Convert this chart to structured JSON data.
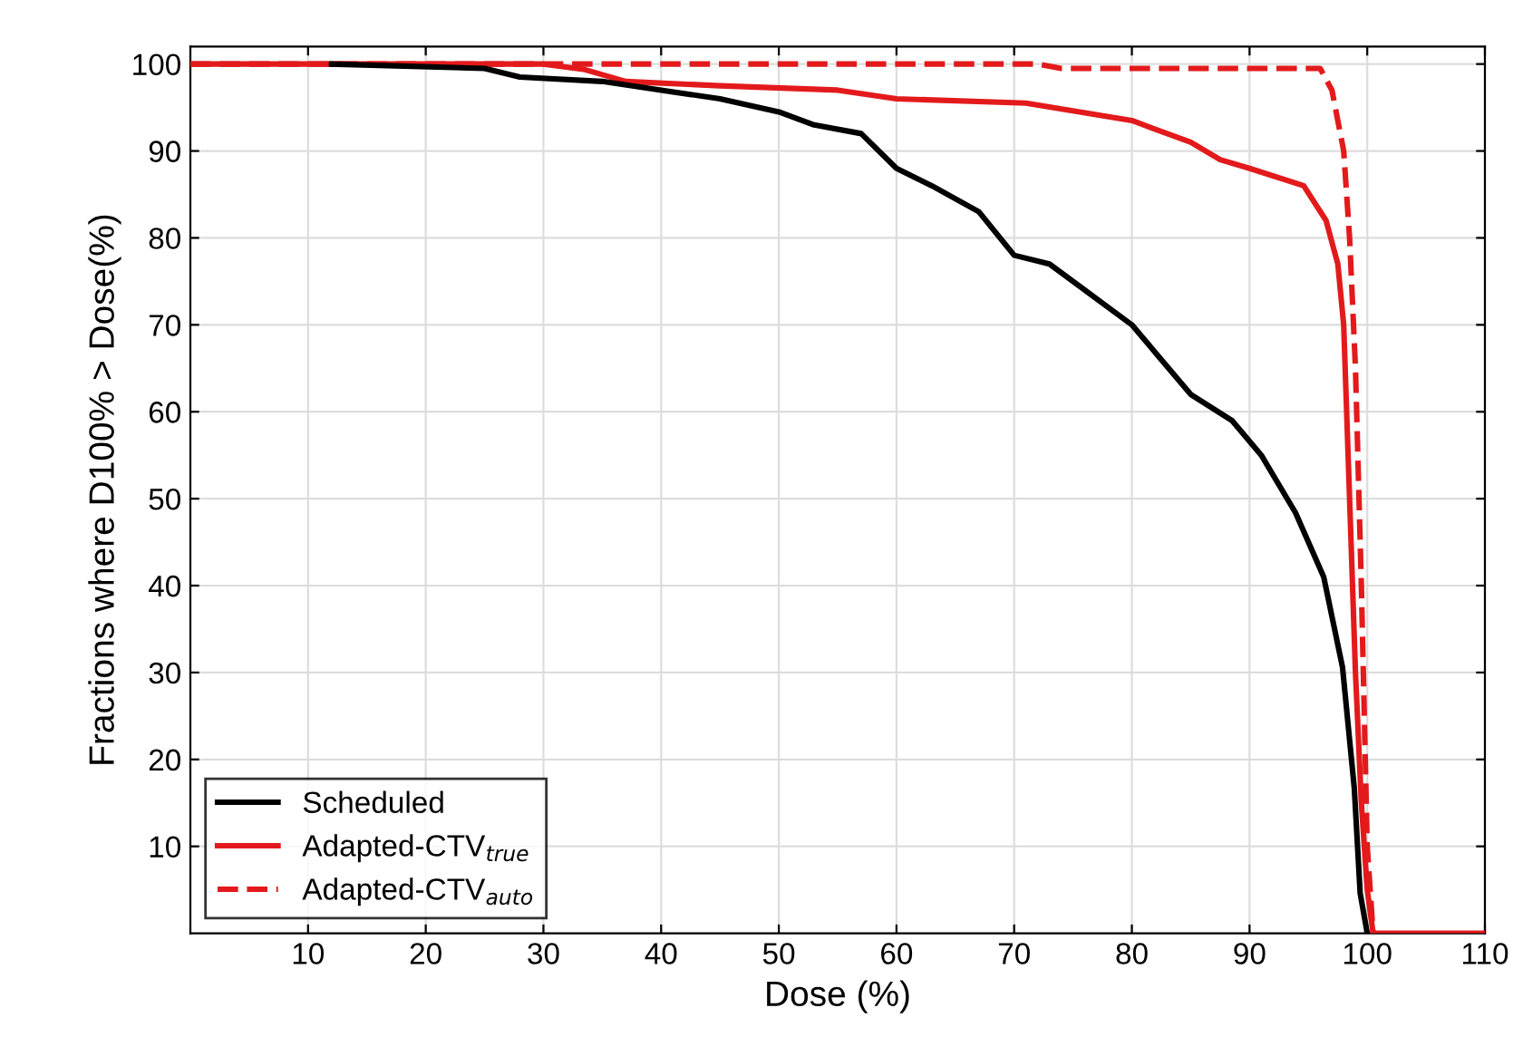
{
  "chart_data": {
    "type": "line",
    "xlabel": "Dose (%)",
    "ylabel": "Fractions where D100% > Dose(%)",
    "xlim": [
      0,
      110
    ],
    "ylim": [
      0,
      102
    ],
    "xticks": [
      10,
      20,
      30,
      40,
      50,
      60,
      70,
      80,
      90,
      100,
      110
    ],
    "yticks": [
      10,
      20,
      30,
      40,
      50,
      60,
      70,
      80,
      90,
      100
    ],
    "grid": true,
    "legend": "bottom left",
    "series": [
      {
        "name": "Scheduled",
        "color": "#000000",
        "line_style": "solid",
        "x": [
          12,
          25,
          28,
          35,
          40,
          45,
          50,
          53,
          57,
          60,
          63,
          67,
          70,
          73,
          76,
          80,
          82.5,
          85,
          88.5,
          91,
          93.9,
          95,
          96.3,
          97.9,
          98.9,
          99.4,
          100
        ],
        "values": [
          100,
          99.5,
          98.5,
          98,
          97,
          96,
          94.5,
          93,
          92,
          88,
          86,
          83,
          78,
          77,
          74,
          70,
          66,
          62,
          59,
          55,
          48.4,
          45,
          41,
          30.6,
          16.7,
          4.6,
          0
        ]
      },
      {
        "name": "Adapted-CTV$_{true}$",
        "color": "#e31a1c",
        "line_style": "solid",
        "x": [
          0,
          30,
          33.4,
          37,
          45,
          55,
          60,
          71,
          80,
          85,
          87.5,
          90,
          94.6,
          96.5,
          97.5,
          98,
          98.5,
          99,
          99.5,
          100,
          100.5,
          110
        ],
        "values": [
          100,
          100,
          99.4,
          98,
          97.5,
          97,
          96,
          95.5,
          93.5,
          91,
          89,
          88,
          86,
          82,
          77,
          70,
          50,
          30,
          15,
          5,
          0,
          0
        ]
      },
      {
        "name": "Adapted-CTV$_{auto}$",
        "color": "#e31a1c",
        "line_style": "dashed",
        "x": [
          0,
          72,
          74,
          96,
          97,
          98,
          98.5,
          99,
          99.5,
          100,
          100.5
        ],
        "values": [
          100,
          100,
          99.5,
          99.5,
          97,
          90,
          80,
          65,
          40,
          10,
          0
        ]
      }
    ]
  }
}
